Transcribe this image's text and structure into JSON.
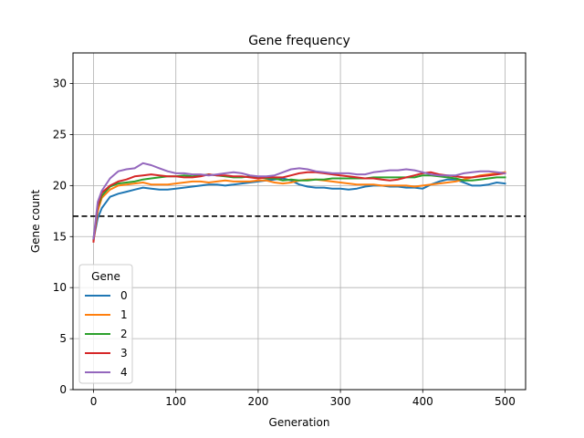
{
  "chart_data": {
    "type": "line",
    "title": "Gene frequency",
    "xlabel": "Generation",
    "ylabel": "Gene count",
    "xlim": [
      -25,
      525
    ],
    "ylim": [
      0,
      33
    ],
    "xticks": [
      0,
      100,
      200,
      300,
      400,
      500
    ],
    "yticks": [
      0,
      5,
      10,
      15,
      20,
      25,
      30
    ],
    "grid": true,
    "reference_line": {
      "y": 17,
      "style": "dashed",
      "color": "#000000"
    },
    "legend": {
      "title": "Gene",
      "placement": "lower-left"
    },
    "x": [
      0,
      5,
      10,
      20,
      30,
      40,
      50,
      60,
      70,
      80,
      90,
      100,
      110,
      120,
      130,
      140,
      150,
      160,
      170,
      180,
      190,
      200,
      210,
      220,
      230,
      240,
      250,
      260,
      270,
      280,
      290,
      300,
      310,
      320,
      330,
      340,
      350,
      360,
      370,
      380,
      390,
      400,
      410,
      420,
      430,
      440,
      450,
      460,
      470,
      480,
      490,
      500
    ],
    "series": [
      {
        "name": "0",
        "color": "#1f77b4",
        "values": [
          14.7,
          16.8,
          17.8,
          18.9,
          19.2,
          19.4,
          19.6,
          19.8,
          19.7,
          19.6,
          19.6,
          19.7,
          19.8,
          19.9,
          20.0,
          20.1,
          20.1,
          20.0,
          20.1,
          20.2,
          20.3,
          20.4,
          20.5,
          20.6,
          20.7,
          20.5,
          20.1,
          19.9,
          19.8,
          19.8,
          19.7,
          19.7,
          19.6,
          19.7,
          19.9,
          20.0,
          20.0,
          19.9,
          19.9,
          19.8,
          19.8,
          19.7,
          20.1,
          20.4,
          20.6,
          20.6,
          20.3,
          20.0,
          20.0,
          20.1,
          20.3,
          20.2
        ]
      },
      {
        "name": "1",
        "color": "#ff7f0e",
        "values": [
          14.6,
          17.5,
          18.8,
          19.6,
          20.0,
          20.1,
          20.2,
          20.3,
          20.1,
          20.1,
          20.1,
          20.2,
          20.3,
          20.4,
          20.4,
          20.3,
          20.4,
          20.5,
          20.4,
          20.4,
          20.4,
          20.5,
          20.5,
          20.3,
          20.2,
          20.3,
          20.5,
          20.6,
          20.6,
          20.5,
          20.4,
          20.3,
          20.2,
          20.1,
          20.1,
          20.1,
          20.0,
          20.0,
          20.0,
          20.0,
          19.9,
          20.0,
          20.1,
          20.2,
          20.3,
          20.4,
          20.6,
          20.8,
          21.0,
          21.1,
          21.2,
          21.3
        ]
      },
      {
        "name": "2",
        "color": "#2ca02c",
        "values": [
          14.8,
          17.9,
          19.0,
          19.9,
          20.2,
          20.3,
          20.4,
          20.6,
          20.7,
          20.8,
          20.9,
          20.9,
          21.0,
          20.9,
          21.0,
          21.1,
          21.0,
          20.9,
          20.8,
          20.8,
          20.9,
          20.8,
          20.7,
          20.7,
          20.5,
          20.6,
          20.5,
          20.5,
          20.6,
          20.6,
          20.7,
          20.7,
          20.7,
          20.7,
          20.7,
          20.8,
          20.8,
          20.8,
          20.8,
          20.8,
          20.8,
          21.0,
          21.0,
          20.9,
          20.8,
          20.7,
          20.5,
          20.5,
          20.6,
          20.7,
          20.8,
          20.8
        ]
      },
      {
        "name": "3",
        "color": "#d62728",
        "values": [
          14.5,
          18.0,
          19.3,
          20.0,
          20.4,
          20.6,
          20.9,
          21.0,
          21.1,
          21.0,
          20.9,
          20.9,
          20.8,
          20.8,
          20.9,
          21.1,
          21.0,
          21.0,
          20.9,
          20.9,
          20.8,
          20.7,
          20.8,
          20.8,
          20.8,
          21.0,
          21.2,
          21.3,
          21.3,
          21.2,
          21.1,
          21.0,
          20.9,
          20.8,
          20.7,
          20.7,
          20.6,
          20.5,
          20.6,
          20.8,
          21.0,
          21.2,
          21.3,
          21.1,
          21.0,
          20.9,
          20.8,
          20.8,
          20.9,
          21.0,
          21.1,
          21.2
        ]
      },
      {
        "name": "4",
        "color": "#9467bd",
        "values": [
          14.8,
          18.4,
          19.5,
          20.7,
          21.4,
          21.6,
          21.7,
          22.2,
          22.0,
          21.7,
          21.4,
          21.2,
          21.2,
          21.1,
          21.1,
          21.0,
          21.1,
          21.2,
          21.3,
          21.2,
          21.0,
          20.9,
          20.9,
          21.0,
          21.3,
          21.6,
          21.7,
          21.6,
          21.4,
          21.3,
          21.2,
          21.2,
          21.2,
          21.1,
          21.1,
          21.3,
          21.4,
          21.5,
          21.5,
          21.6,
          21.5,
          21.3,
          21.1,
          21.0,
          21.0,
          21.0,
          21.2,
          21.3,
          21.4,
          21.4,
          21.3,
          21.2
        ]
      }
    ]
  }
}
